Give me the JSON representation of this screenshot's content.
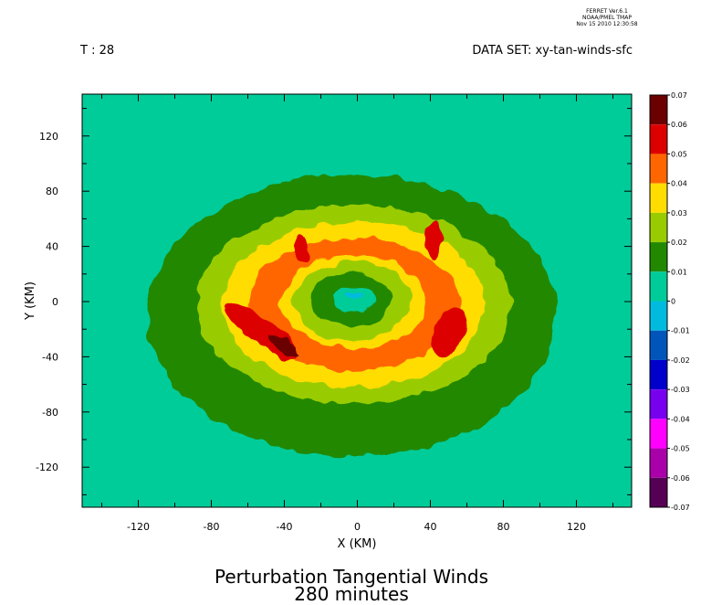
{
  "header": {
    "ferret_lines": [
      "FERRET Ver.6.1",
      "NOAA/PMEL TMAP",
      "Nov 15 2010 12:30:58"
    ],
    "time_label": "T : 28",
    "dataset_label": "DATA SET: xy-tan-winds-sfc"
  },
  "titles": {
    "line1": "Perturbation Tangential Winds",
    "line2": "280 minutes"
  },
  "chart_data": {
    "type": "heatmap",
    "title": "Perturbation Tangential Winds",
    "subtitle": "280 minutes",
    "xlabel": "X (KM)",
    "ylabel": "Y (KM)",
    "xlim": [
      -150,
      150
    ],
    "ylim": [
      -150,
      150
    ],
    "x_ticks": [
      -120,
      -80,
      -40,
      0,
      40,
      80,
      120
    ],
    "y_ticks": [
      120,
      80,
      40,
      0,
      -40,
      -80,
      -120
    ],
    "colorbar": {
      "levels": [
        "0.07",
        "0.06",
        "0.05",
        "0.04",
        "0.03",
        "0.02",
        "0.01",
        "0",
        "-0.01",
        "-0.02",
        "-0.03",
        "-0.04",
        "-0.05",
        "-0.06",
        "-0.07"
      ],
      "colors": [
        "#6b0000",
        "#dd0000",
        "#ff6600",
        "#ffdd00",
        "#99cc00",
        "#228800",
        "#00cc99",
        "#00bbdd",
        "#0055bb",
        "#0000cc",
        "#7700ee",
        "#ff00ff",
        "#aa00aa",
        "#550055"
      ]
    },
    "background_color": "#00cc99",
    "contour_bands": [
      {
        "level": "0.01",
        "color": "#228800",
        "rx": 112,
        "ry": 102,
        "cx": -3,
        "cy": -10
      },
      {
        "level": "0.02",
        "color": "#99cc00",
        "rx": 86,
        "ry": 72,
        "cx": -2,
        "cy": -2
      },
      {
        "level": "0.03",
        "color": "#ffdd00",
        "rx": 72,
        "ry": 60,
        "cx": -2,
        "cy": -2
      },
      {
        "level": "0.04",
        "color": "#ff6600",
        "rx": 58,
        "ry": 48,
        "cx": -2,
        "cy": -2
      },
      {
        "level": "0.03",
        "color": "#ffdd00",
        "rx": 40,
        "ry": 34,
        "cx": -2,
        "cy": 0
      },
      {
        "level": "0.02",
        "color": "#99cc00",
        "rx": 32,
        "ry": 29,
        "cx": -3,
        "cy": 0
      },
      {
        "level": "0.01",
        "color": "#228800",
        "rx": 22,
        "ry": 19,
        "cx": -3,
        "cy": 2
      },
      {
        "level": "0",
        "color": "#00cc99",
        "rx": 12,
        "ry": 10,
        "cx": -2,
        "cy": 2
      },
      {
        "level": "-0.01",
        "color": "#00bbdd",
        "rx": 5,
        "ry": 3,
        "cx": -2,
        "cy": 5
      }
    ],
    "maxima_patches": [
      {
        "level": "0.05",
        "color": "#dd0000",
        "cx": -52,
        "cy": -22,
        "rx": 24,
        "ry": 9,
        "angle": 35
      },
      {
        "level": "0.06",
        "color": "#6b0000",
        "cx": -40,
        "cy": -32,
        "rx": 10,
        "ry": 4,
        "angle": 30
      },
      {
        "level": "0.05",
        "color": "#dd0000",
        "cx": 50,
        "cy": -22,
        "rx": 8,
        "ry": 20,
        "angle": 25
      },
      {
        "level": "0.05",
        "color": "#dd0000",
        "cx": 42,
        "cy": 45,
        "rx": 4,
        "ry": 14,
        "angle": 0
      },
      {
        "level": "0.05",
        "color": "#dd0000",
        "cx": -30,
        "cy": 38,
        "rx": 4,
        "ry": 9,
        "angle": -10
      }
    ]
  }
}
